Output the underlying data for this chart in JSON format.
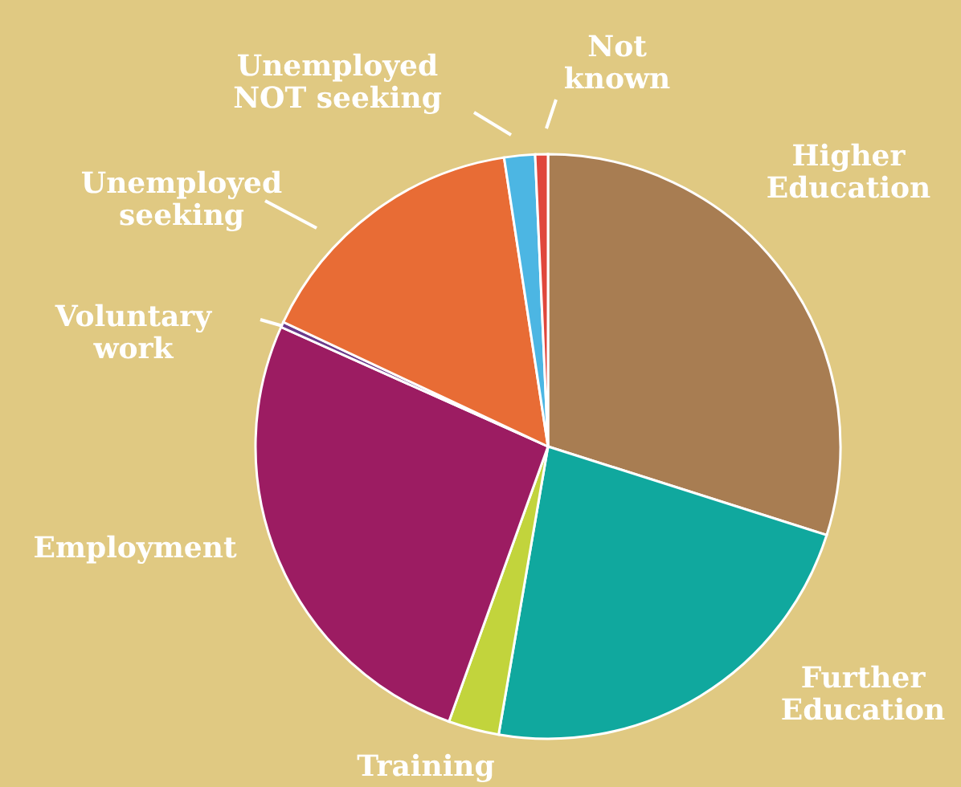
{
  "chart_data": {
    "type": "pie",
    "categories": [
      "Higher Education",
      "Further Education",
      "Training",
      "Employment",
      "Voluntary work",
      "Unemployed seeking",
      "Unemployed NOT seeking",
      "Not known"
    ],
    "values": [
      29.9,
      22.8,
      2.8,
      26.2,
      0.3,
      15.6,
      1.7,
      0.7
    ],
    "colors": [
      "#a87d52",
      "#10a89e",
      "#c2d43c",
      "#9c1c62",
      "#6b3a8a",
      "#e86c35",
      "#4cb6e3",
      "#e0473c"
    ]
  }
}
